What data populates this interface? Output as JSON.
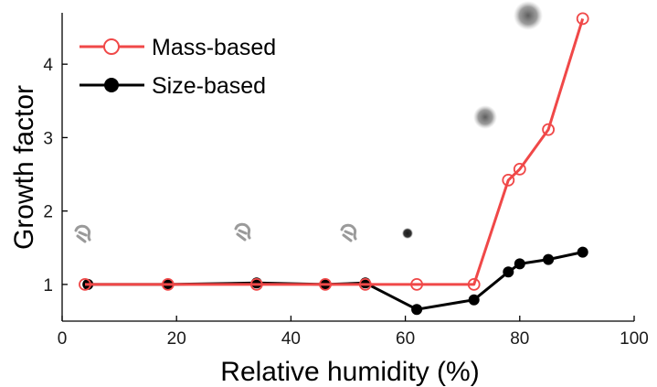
{
  "chart_data": {
    "type": "line",
    "title": "",
    "xlabel": "Relative humidity (%)",
    "ylabel": "Growth factor",
    "xlim": [
      0,
      100
    ],
    "ylim": [
      0.5,
      4.7
    ],
    "x_ticks": [
      0,
      20,
      40,
      60,
      80,
      100
    ],
    "y_ticks": [
      1,
      2,
      3,
      4
    ],
    "grid": false,
    "legend_position": "top-left",
    "series": [
      {
        "name": "Mass-based",
        "color": "#f04848",
        "marker": "open-circle",
        "points": [
          [
            4,
            1.0
          ],
          [
            18.5,
            1.0
          ],
          [
            34,
            1.0
          ],
          [
            46,
            1.0
          ],
          [
            53,
            1.0
          ],
          [
            62,
            1.0
          ],
          [
            72,
            1.0
          ],
          [
            78,
            2.42
          ],
          [
            80,
            2.57
          ],
          [
            85,
            3.11
          ],
          [
            91,
            4.62
          ]
        ]
      },
      {
        "name": "Size-based",
        "color": "#000000",
        "marker": "filled-circle",
        "points": [
          [
            4.5,
            1.0
          ],
          [
            18.5,
            1.0
          ],
          [
            34,
            1.02
          ],
          [
            46,
            1.0
          ],
          [
            53,
            1.02
          ],
          [
            62,
            0.66
          ],
          [
            72,
            0.79
          ],
          [
            78,
            1.17
          ],
          [
            80,
            1.28
          ],
          [
            85,
            1.34
          ],
          [
            91,
            1.44
          ]
        ]
      }
    ]
  }
}
